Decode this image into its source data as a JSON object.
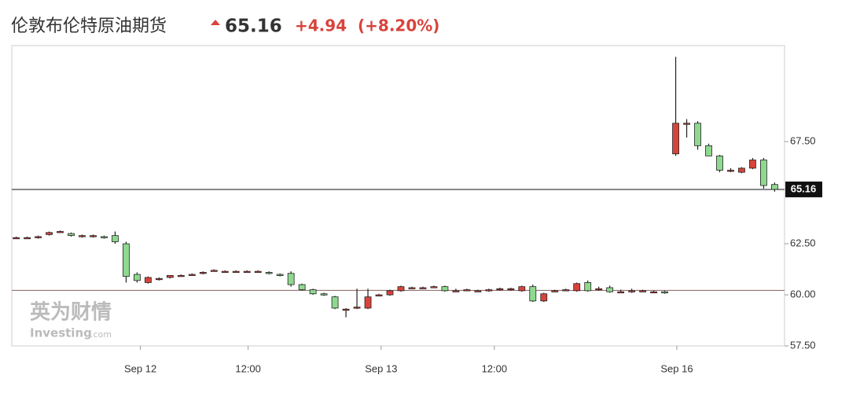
{
  "chart_data": {
    "type": "candlestick",
    "title": "伦敦布伦特原油期货",
    "price": "65.16",
    "change": "+4.94",
    "change_pct": "(+8.20%)",
    "watermark": [
      "英为财情",
      "Investing",
      ".com"
    ],
    "x": [
      0,
      1,
      2,
      3,
      4,
      5,
      6,
      7,
      8,
      9,
      10,
      11,
      12,
      13,
      14,
      15,
      16,
      17,
      18,
      19,
      20,
      21,
      22,
      23,
      24,
      25,
      26,
      27,
      28,
      29,
      30,
      31,
      32,
      33,
      34,
      35,
      36,
      37,
      38,
      39,
      40,
      41,
      42,
      43,
      44,
      45,
      46,
      47,
      48,
      49,
      50,
      51,
      52,
      53,
      54,
      55,
      56,
      57,
      58,
      59,
      60,
      61,
      62,
      63,
      64,
      65,
      66,
      67,
      68,
      69
    ],
    "open": [
      62.8,
      62.8,
      62.8,
      62.95,
      63.1,
      63.0,
      62.9,
      62.9,
      62.85,
      62.9,
      62.5,
      61.0,
      60.6,
      60.75,
      60.85,
      60.95,
      61.0,
      61.05,
      61.2,
      61.15,
      61.15,
      61.15,
      61.15,
      61.1,
      61.0,
      61.05,
      60.5,
      60.25,
      60.05,
      59.9,
      59.3,
      59.4,
      59.35,
      60.0,
      60.0,
      60.2,
      60.35,
      60.35,
      60.4,
      60.4,
      60.2,
      60.25,
      60.2,
      60.2,
      60.25,
      60.3,
      60.2,
      60.4,
      59.7,
      60.2,
      60.25,
      60.2,
      60.6,
      60.3,
      60.35,
      60.15,
      60.2,
      60.2,
      60.15,
      60.15,
      66.9,
      68.4,
      68.4,
      67.3,
      66.8,
      66.1,
      66.0,
      66.2,
      66.6,
      65.4
    ],
    "high": [
      62.85,
      62.85,
      62.9,
      63.1,
      63.15,
      63.05,
      62.95,
      62.95,
      62.9,
      63.1,
      62.6,
      61.1,
      60.9,
      60.85,
      60.95,
      61.0,
      61.05,
      61.15,
      61.25,
      61.2,
      61.2,
      61.2,
      61.2,
      61.15,
      61.05,
      61.15,
      60.55,
      60.3,
      60.1,
      59.95,
      59.35,
      60.3,
      60.3,
      60.05,
      60.25,
      60.45,
      60.4,
      60.4,
      60.45,
      60.45,
      60.3,
      60.3,
      60.25,
      60.3,
      60.35,
      60.35,
      60.45,
      60.5,
      60.1,
      60.25,
      60.3,
      60.6,
      60.7,
      60.4,
      60.45,
      60.25,
      60.3,
      60.25,
      60.2,
      60.2,
      71.65,
      68.6,
      68.5,
      67.4,
      66.85,
      66.2,
      66.25,
      66.7,
      66.7,
      65.5
    ],
    "low": [
      62.75,
      62.75,
      62.75,
      62.9,
      63.05,
      62.85,
      62.8,
      62.8,
      62.75,
      62.5,
      60.6,
      60.6,
      60.55,
      60.7,
      60.8,
      60.9,
      60.95,
      61.0,
      61.15,
      61.1,
      61.1,
      61.1,
      61.1,
      61.0,
      60.9,
      60.4,
      60.2,
      60.0,
      59.95,
      59.3,
      58.9,
      59.3,
      59.3,
      59.95,
      59.95,
      60.15,
      60.3,
      60.3,
      60.35,
      60.15,
      60.15,
      60.2,
      60.15,
      60.15,
      60.2,
      60.2,
      60.15,
      59.65,
      59.65,
      60.15,
      60.2,
      60.15,
      60.15,
      60.2,
      60.1,
      60.1,
      60.1,
      60.15,
      60.1,
      60.05,
      66.8,
      67.7,
      67.1,
      66.8,
      66.0,
      66.0,
      65.95,
      66.15,
      65.2,
      65.05
    ],
    "close": [
      62.8,
      62.8,
      62.85,
      63.05,
      63.1,
      62.9,
      62.9,
      62.9,
      62.8,
      62.6,
      60.9,
      60.7,
      60.85,
      60.8,
      60.95,
      60.95,
      61.0,
      61.1,
      61.2,
      61.15,
      61.15,
      61.15,
      61.15,
      61.05,
      60.95,
      60.5,
      60.25,
      60.05,
      60.0,
      59.35,
      59.3,
      59.4,
      59.9,
      60.0,
      60.2,
      60.4,
      60.35,
      60.35,
      60.4,
      60.2,
      60.2,
      60.25,
      60.2,
      60.25,
      60.3,
      60.3,
      60.4,
      59.7,
      60.05,
      60.2,
      60.25,
      60.55,
      60.2,
      60.3,
      60.15,
      60.15,
      60.2,
      60.2,
      60.15,
      60.1,
      68.4,
      68.4,
      67.3,
      66.8,
      66.1,
      66.1,
      66.2,
      66.6,
      65.35,
      65.16
    ],
    "up_color": "#d8433c",
    "down_color": "#8fd98f",
    "xlim": [
      -0.4,
      69.9
    ],
    "xticks": [
      {
        "value": 11.3,
        "label": "Sep 12"
      },
      {
        "value": 21.1,
        "label": "12:00"
      },
      {
        "value": 33.2,
        "label": "Sep 13"
      },
      {
        "value": 43.5,
        "label": "12:00"
      },
      {
        "value": 60.1,
        "label": "Sep 16"
      }
    ],
    "ylim": [
      57.5,
      72.2
    ],
    "yticks": [
      {
        "value": 57.5,
        "label": "57.50"
      },
      {
        "value": 60,
        "label": "60.00"
      },
      {
        "value": 62.5,
        "label": "62.50"
      },
      {
        "value": 67.5,
        "label": "67.50"
      }
    ],
    "price_line": 65.16,
    "prev_close_line": 60.22
  }
}
